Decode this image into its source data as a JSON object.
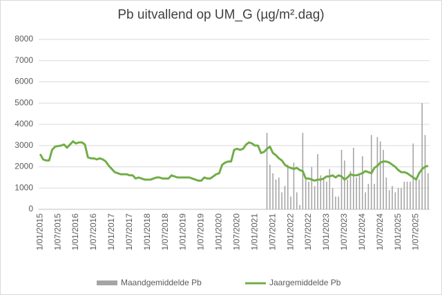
{
  "chart_data": {
    "type": "bar_line",
    "title": "Pb uitvallend op UM_G (µg/m².dag)",
    "categories": [
      "1/01/2015",
      null,
      null,
      null,
      null,
      null,
      "1/07/2015",
      null,
      null,
      null,
      null,
      null,
      "1/01/2016",
      null,
      null,
      null,
      null,
      null,
      "1/07/2016",
      null,
      null,
      null,
      null,
      null,
      "1/01/2017",
      null,
      null,
      null,
      null,
      null,
      "1/07/2017",
      null,
      null,
      null,
      null,
      null,
      "1/01/2018",
      null,
      null,
      null,
      null,
      null,
      "1/07/2018",
      null,
      null,
      null,
      null,
      null,
      "1/01/2019",
      null,
      null,
      null,
      null,
      null,
      "1/07/2019",
      null,
      null,
      null,
      null,
      null,
      "1/01/2020",
      null,
      null,
      null,
      null,
      null,
      "1/07/2020",
      null,
      null,
      null,
      null,
      null,
      "1/01/2021",
      null,
      null,
      null,
      null,
      null,
      "1/07/2021",
      null,
      null,
      null,
      null,
      null,
      "1/01/2022",
      null,
      null,
      null,
      null,
      null,
      "1/07/2022",
      null,
      null,
      null,
      null,
      null,
      "1/01/2023",
      null,
      null,
      null,
      null,
      null,
      "1/07/2023",
      null,
      null,
      null,
      null,
      null,
      "1/01/2024",
      null,
      null,
      null,
      null,
      null,
      "1/07/2024",
      null,
      null,
      null,
      null,
      null,
      "1/01/2025",
      null,
      null,
      null,
      null,
      null,
      "1/07/2025",
      null,
      null,
      null,
      null
    ],
    "series": [
      {
        "name": "Maandgemiddelde Pb",
        "type": "bar",
        "color": "#a5a5a5",
        "values": [
          null,
          null,
          null,
          null,
          null,
          null,
          null,
          null,
          null,
          null,
          null,
          null,
          null,
          null,
          null,
          null,
          null,
          null,
          null,
          null,
          null,
          null,
          null,
          null,
          null,
          null,
          null,
          null,
          null,
          null,
          null,
          null,
          null,
          null,
          null,
          null,
          null,
          null,
          null,
          null,
          null,
          null,
          null,
          null,
          null,
          null,
          null,
          null,
          null,
          null,
          null,
          null,
          null,
          null,
          null,
          null,
          null,
          null,
          null,
          null,
          null,
          null,
          null,
          null,
          null,
          null,
          null,
          null,
          null,
          null,
          null,
          null,
          null,
          null,
          null,
          null,
          3600,
          2100,
          1700,
          1400,
          1500,
          800,
          1100,
          2100,
          600,
          2200,
          800,
          200,
          3600,
          1400,
          1300,
          2000,
          1100,
          2600,
          1600,
          1400,
          1300,
          1900,
          1000,
          600,
          600,
          2800,
          2300,
          1400,
          1800,
          2900,
          1500,
          1700,
          2500,
          800,
          1200,
          3500,
          1200,
          3400,
          3200,
          2800,
          1500,
          900,
          1100,
          800,
          1000,
          1000,
          1300,
          1300,
          1300,
          3100,
          1500,
          1400,
          5000,
          3500,
          1700
        ]
      },
      {
        "name": "Jaargemiddelde Pb",
        "type": "line",
        "color": "#70ad47",
        "values": [
          2600,
          2350,
          2300,
          2300,
          2800,
          2950,
          2980,
          3000,
          3050,
          2900,
          3050,
          3200,
          3100,
          3150,
          3150,
          3050,
          2450,
          2400,
          2400,
          2350,
          2400,
          2350,
          2250,
          2050,
          1900,
          1750,
          1700,
          1650,
          1650,
          1650,
          1600,
          1600,
          1450,
          1500,
          1450,
          1400,
          1400,
          1400,
          1450,
          1500,
          1500,
          1450,
          1450,
          1450,
          1600,
          1550,
          1500,
          1500,
          1500,
          1500,
          1500,
          1450,
          1400,
          1350,
          1350,
          1500,
          1450,
          1450,
          1550,
          1650,
          1700,
          2100,
          2200,
          2250,
          2250,
          2800,
          2850,
          2800,
          2850,
          3050,
          3150,
          3100,
          3000,
          3000,
          2650,
          2700,
          2850,
          2950,
          2650,
          2550,
          2400,
          2300,
          2100,
          2000,
          1950,
          1900,
          1950,
          1850,
          1800,
          1450,
          1450,
          1400,
          1350,
          1400,
          1400,
          1450,
          1550,
          1550,
          1600,
          1500,
          1600,
          1550,
          1400,
          1500,
          1650,
          1600,
          1600,
          1650,
          1700,
          1800,
          1750,
          1700,
          1950,
          2050,
          2200,
          2250,
          2250,
          2200,
          2100,
          2000,
          1850,
          1750,
          1750,
          1700,
          1600,
          1500,
          1400,
          1700,
          1900,
          2000,
          2050
        ]
      }
    ],
    "ylim": [
      0,
      8000
    ],
    "yticks": [
      0,
      1000,
      2000,
      3000,
      4000,
      5000,
      6000,
      7000,
      8000
    ],
    "grid": true,
    "legend": "bottom"
  }
}
